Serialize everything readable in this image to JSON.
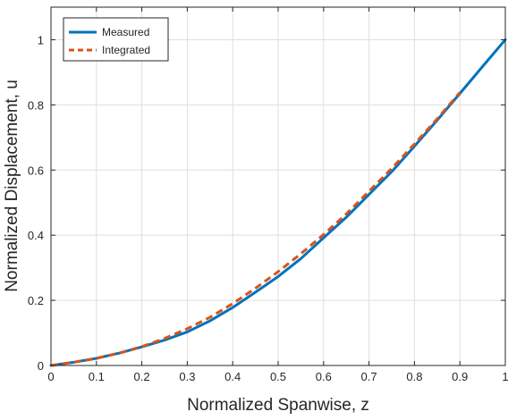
{
  "chart_data": {
    "type": "line",
    "title": "",
    "xlabel": "Normalized Spanwise, z",
    "ylabel": "Normalized Displacement, u",
    "xlim": [
      0,
      1
    ],
    "ylim": [
      0,
      1.1
    ],
    "xticks": [
      0,
      0.1,
      0.2,
      0.3,
      0.4,
      0.5,
      0.6,
      0.7,
      0.8,
      0.9,
      1
    ],
    "xtick_labels": [
      "0",
      "0.1",
      "0.2",
      "0.3",
      "0.4",
      "0.5",
      "0.6",
      "0.7",
      "0.8",
      "0.9",
      "1"
    ],
    "yticks": [
      0,
      0.2,
      0.4,
      0.6,
      0.8,
      1
    ],
    "ytick_labels": [
      "0",
      "0.2",
      "0.4",
      "0.6",
      "0.8",
      "1"
    ],
    "grid": true,
    "legend_position": "top-left",
    "series": [
      {
        "name": "Measured",
        "color": "#0072BD",
        "style": "solid",
        "x": [
          0,
          0.05,
          0.1,
          0.15,
          0.2,
          0.25,
          0.3,
          0.35,
          0.4,
          0.45,
          0.5,
          0.55,
          0.6,
          0.65,
          0.7,
          0.75,
          0.8,
          0.85,
          0.9,
          0.95,
          1.0
        ],
        "y": [
          0,
          0.01,
          0.022,
          0.038,
          0.057,
          0.078,
          0.103,
          0.137,
          0.178,
          0.225,
          0.273,
          0.328,
          0.392,
          0.455,
          0.525,
          0.595,
          0.673,
          0.753,
          0.835,
          0.918,
          1.0
        ]
      },
      {
        "name": "Integrated",
        "color": "#D95319",
        "style": "dashed",
        "x": [
          0,
          0.05,
          0.1,
          0.15,
          0.2,
          0.25,
          0.3,
          0.35,
          0.4,
          0.45,
          0.5,
          0.55,
          0.6,
          0.65,
          0.7,
          0.75,
          0.8,
          0.85,
          0.9
        ],
        "y": [
          0,
          0.01,
          0.022,
          0.038,
          0.058,
          0.083,
          0.113,
          0.148,
          0.19,
          0.237,
          0.288,
          0.343,
          0.402,
          0.465,
          0.535,
          0.605,
          0.68,
          0.757,
          0.838
        ]
      }
    ]
  }
}
